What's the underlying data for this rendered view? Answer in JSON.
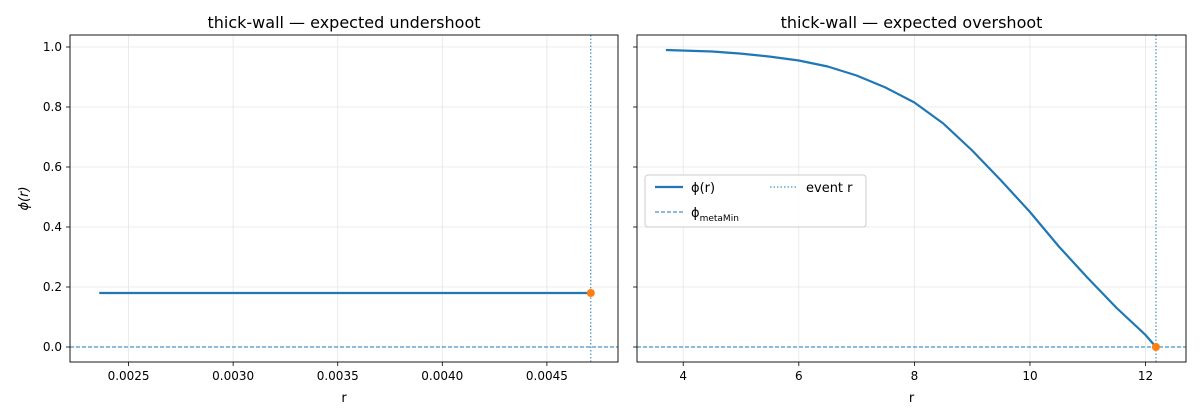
{
  "chart_data": [
    {
      "type": "line",
      "title": "thick-wall — expected undershoot",
      "xlabel": "r",
      "ylabel": "ϕ(r)",
      "xlim": [
        0.00222,
        0.00484
      ],
      "ylim": [
        -0.05,
        1.04
      ],
      "xticks": [
        0.0025,
        0.003,
        0.0035,
        0.004,
        0.0045
      ],
      "xtick_labels": [
        "0.0025",
        "0.0030",
        "0.0035",
        "0.0040",
        "0.0045"
      ],
      "yticks": [
        0.0,
        0.2,
        0.4,
        0.6,
        0.8,
        1.0
      ],
      "ytick_labels": [
        "0.0",
        "0.2",
        "0.4",
        "0.6",
        "0.8",
        "1.0"
      ],
      "grid": true,
      "colors": {
        "curve": "#1f77b4",
        "event": "#ff7f0e"
      },
      "series": [
        {
          "key": "phi",
          "style": "solid",
          "x": [
            0.00236,
            0.003,
            0.0035,
            0.004,
            0.00471
          ],
          "y": [
            0.18,
            0.18,
            0.18,
            0.18,
            0.18
          ]
        }
      ],
      "hline": 0.0,
      "vline": 0.00471,
      "event_point": {
        "x": 0.00471,
        "y": 0.18
      }
    },
    {
      "type": "line",
      "title": "thick-wall — expected overshoot",
      "xlabel": "r",
      "ylabel": "",
      "xlim": [
        3.2,
        12.7
      ],
      "ylim": [
        -0.05,
        1.04
      ],
      "xticks": [
        4,
        6,
        8,
        10,
        12
      ],
      "xtick_labels": [
        "4",
        "6",
        "8",
        "10",
        "12"
      ],
      "yticks": [
        0.0,
        0.2,
        0.4,
        0.6,
        0.8,
        1.0
      ],
      "ytick_labels": [],
      "grid": true,
      "colors": {
        "curve": "#1f77b4",
        "event": "#ff7f0e"
      },
      "series": [
        {
          "key": "phi",
          "style": "solid",
          "x": [
            3.7,
            4.5,
            5,
            5.5,
            6,
            6.5,
            7,
            7.5,
            8,
            8.5,
            9,
            9.5,
            10,
            10.5,
            11,
            11.5,
            12,
            12.18
          ],
          "y": [
            0.99,
            0.985,
            0.978,
            0.968,
            0.955,
            0.935,
            0.905,
            0.865,
            0.815,
            0.745,
            0.655,
            0.555,
            0.45,
            0.335,
            0.23,
            0.13,
            0.04,
            0.0
          ]
        }
      ],
      "hline": 0.0,
      "vline": 12.18,
      "event_point": {
        "x": 12.18,
        "y": 0.0
      },
      "legend": {
        "placement": "center-left",
        "entries": [
          {
            "style": "solid",
            "label": "ϕ(r)"
          },
          {
            "style": "dotted",
            "label": "event r"
          },
          {
            "style": "dashed",
            "label": "ϕ",
            "sub": "metaMin"
          }
        ]
      }
    }
  ]
}
